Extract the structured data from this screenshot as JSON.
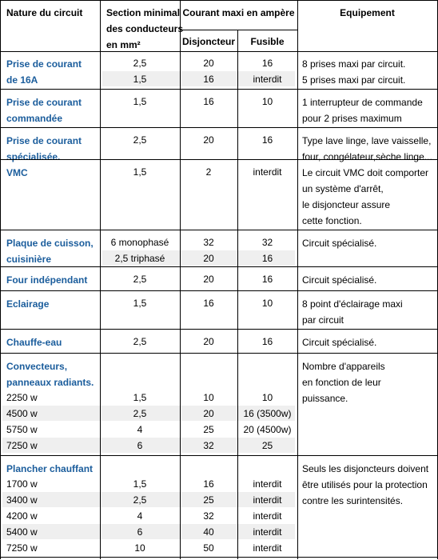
{
  "header": {
    "nature": "Nature du circuit",
    "section": [
      "Section minimal",
      "des conducteurs",
      "en mm²"
    ],
    "courant": "Courant maxi en ampère",
    "disjoncteur": "Disjoncteur",
    "fusible": "Fusible",
    "equipement": "Equipement"
  },
  "groups": [
    {
      "title": [
        "Prise de courant",
        "de 16A"
      ],
      "equipment": [
        "8 prises maxi par circuit.",
        "5 prises maxi par circuit."
      ],
      "rows": [
        {
          "section": "2,5",
          "disjoncteur": "20",
          "fusible": "16"
        },
        {
          "section": "1,5",
          "disjoncteur": "16",
          "fusible": "interdit"
        }
      ]
    },
    {
      "title": [
        "Prise de courant",
        "commandée"
      ],
      "equipment": [
        "1 interrupteur de commande",
        "pour 2 prises maximum"
      ],
      "rows": [
        {
          "section": "1,5",
          "disjoncteur": "16",
          "fusible": "10"
        }
      ]
    },
    {
      "title": [
        "Prise de courant",
        "spécialisée."
      ],
      "equipment": [
        "Type lave linge, lave vaisselle,",
        "four, congélateur,sèche linge..."
      ],
      "rows": [
        {
          "section": "2,5",
          "disjoncteur": "20",
          "fusible": "16"
        }
      ]
    },
    {
      "title": [
        "VMC"
      ],
      "equipment": [
        "Le circuit VMC doit comporter",
        "un système d'arrêt,",
        "le disjoncteur assure",
        "cette fonction."
      ],
      "rows": [
        {
          "section": "1,5",
          "disjoncteur": "2",
          "fusible": "interdit"
        }
      ]
    },
    {
      "title": [
        "Plaque de cuisson,",
        "cuisinière"
      ],
      "equipment": [
        "Circuit spécialisé."
      ],
      "rows": [
        {
          "section": "6 monophasé",
          "disjoncteur": "32",
          "fusible": "32"
        },
        {
          "section": "2,5 triphasé",
          "disjoncteur": "20",
          "fusible": "16"
        }
      ]
    },
    {
      "title": [
        "Four indépendant"
      ],
      "equipment": [
        "Circuit spécialisé."
      ],
      "rows": [
        {
          "section": "2,5",
          "disjoncteur": "20",
          "fusible": "16"
        }
      ]
    },
    {
      "title": [
        "Eclairage"
      ],
      "equipment": [
        "8 point d'éclairage maxi",
        "par circuit"
      ],
      "rows": [
        {
          "section": "1,5",
          "disjoncteur": "16",
          "fusible": "10"
        }
      ]
    },
    {
      "title": [
        "Chauffe-eau"
      ],
      "equipment": [
        "Circuit spécialisé."
      ],
      "rows": [
        {
          "section": "2,5",
          "disjoncteur": "20",
          "fusible": "16"
        }
      ]
    },
    {
      "title": [
        "Convecteurs,",
        "panneaux radiants."
      ],
      "equipment": [
        "Nombre d'appareils",
        "en fonction de leur",
        "puissance."
      ],
      "rows": [
        {
          "label": "2250 w",
          "section": "1,5",
          "disjoncteur": "10",
          "fusible": "10"
        },
        {
          "label": "4500 w",
          "section": "2,5",
          "disjoncteur": "20",
          "fusible": "16 (3500w)"
        },
        {
          "label": "5750 w",
          "section": "4",
          "disjoncteur": "25",
          "fusible": "20 (4500w)"
        },
        {
          "label": "7250 w",
          "section": "6",
          "disjoncteur": "32",
          "fusible": "25"
        }
      ]
    },
    {
      "title": [
        "Plancher chauffant"
      ],
      "equipment": [
        "Seuls les disjoncteurs doivent",
        "être utilisés pour la protection",
        "contre les surintensités."
      ],
      "rows": [
        {
          "label": "1700 w",
          "section": "1,5",
          "disjoncteur": "16",
          "fusible": "interdit"
        },
        {
          "label": "3400 w",
          "section": "2,5",
          "disjoncteur": "25",
          "fusible": "interdit"
        },
        {
          "label": "4200 w",
          "section": "4",
          "disjoncteur": "32",
          "fusible": "interdit"
        },
        {
          "label": "5400 w",
          "section": "6",
          "disjoncteur": "40",
          "fusible": "interdit"
        },
        {
          "label": "7250 w",
          "section": "10",
          "disjoncteur": "50",
          "fusible": "interdit"
        }
      ]
    }
  ]
}
